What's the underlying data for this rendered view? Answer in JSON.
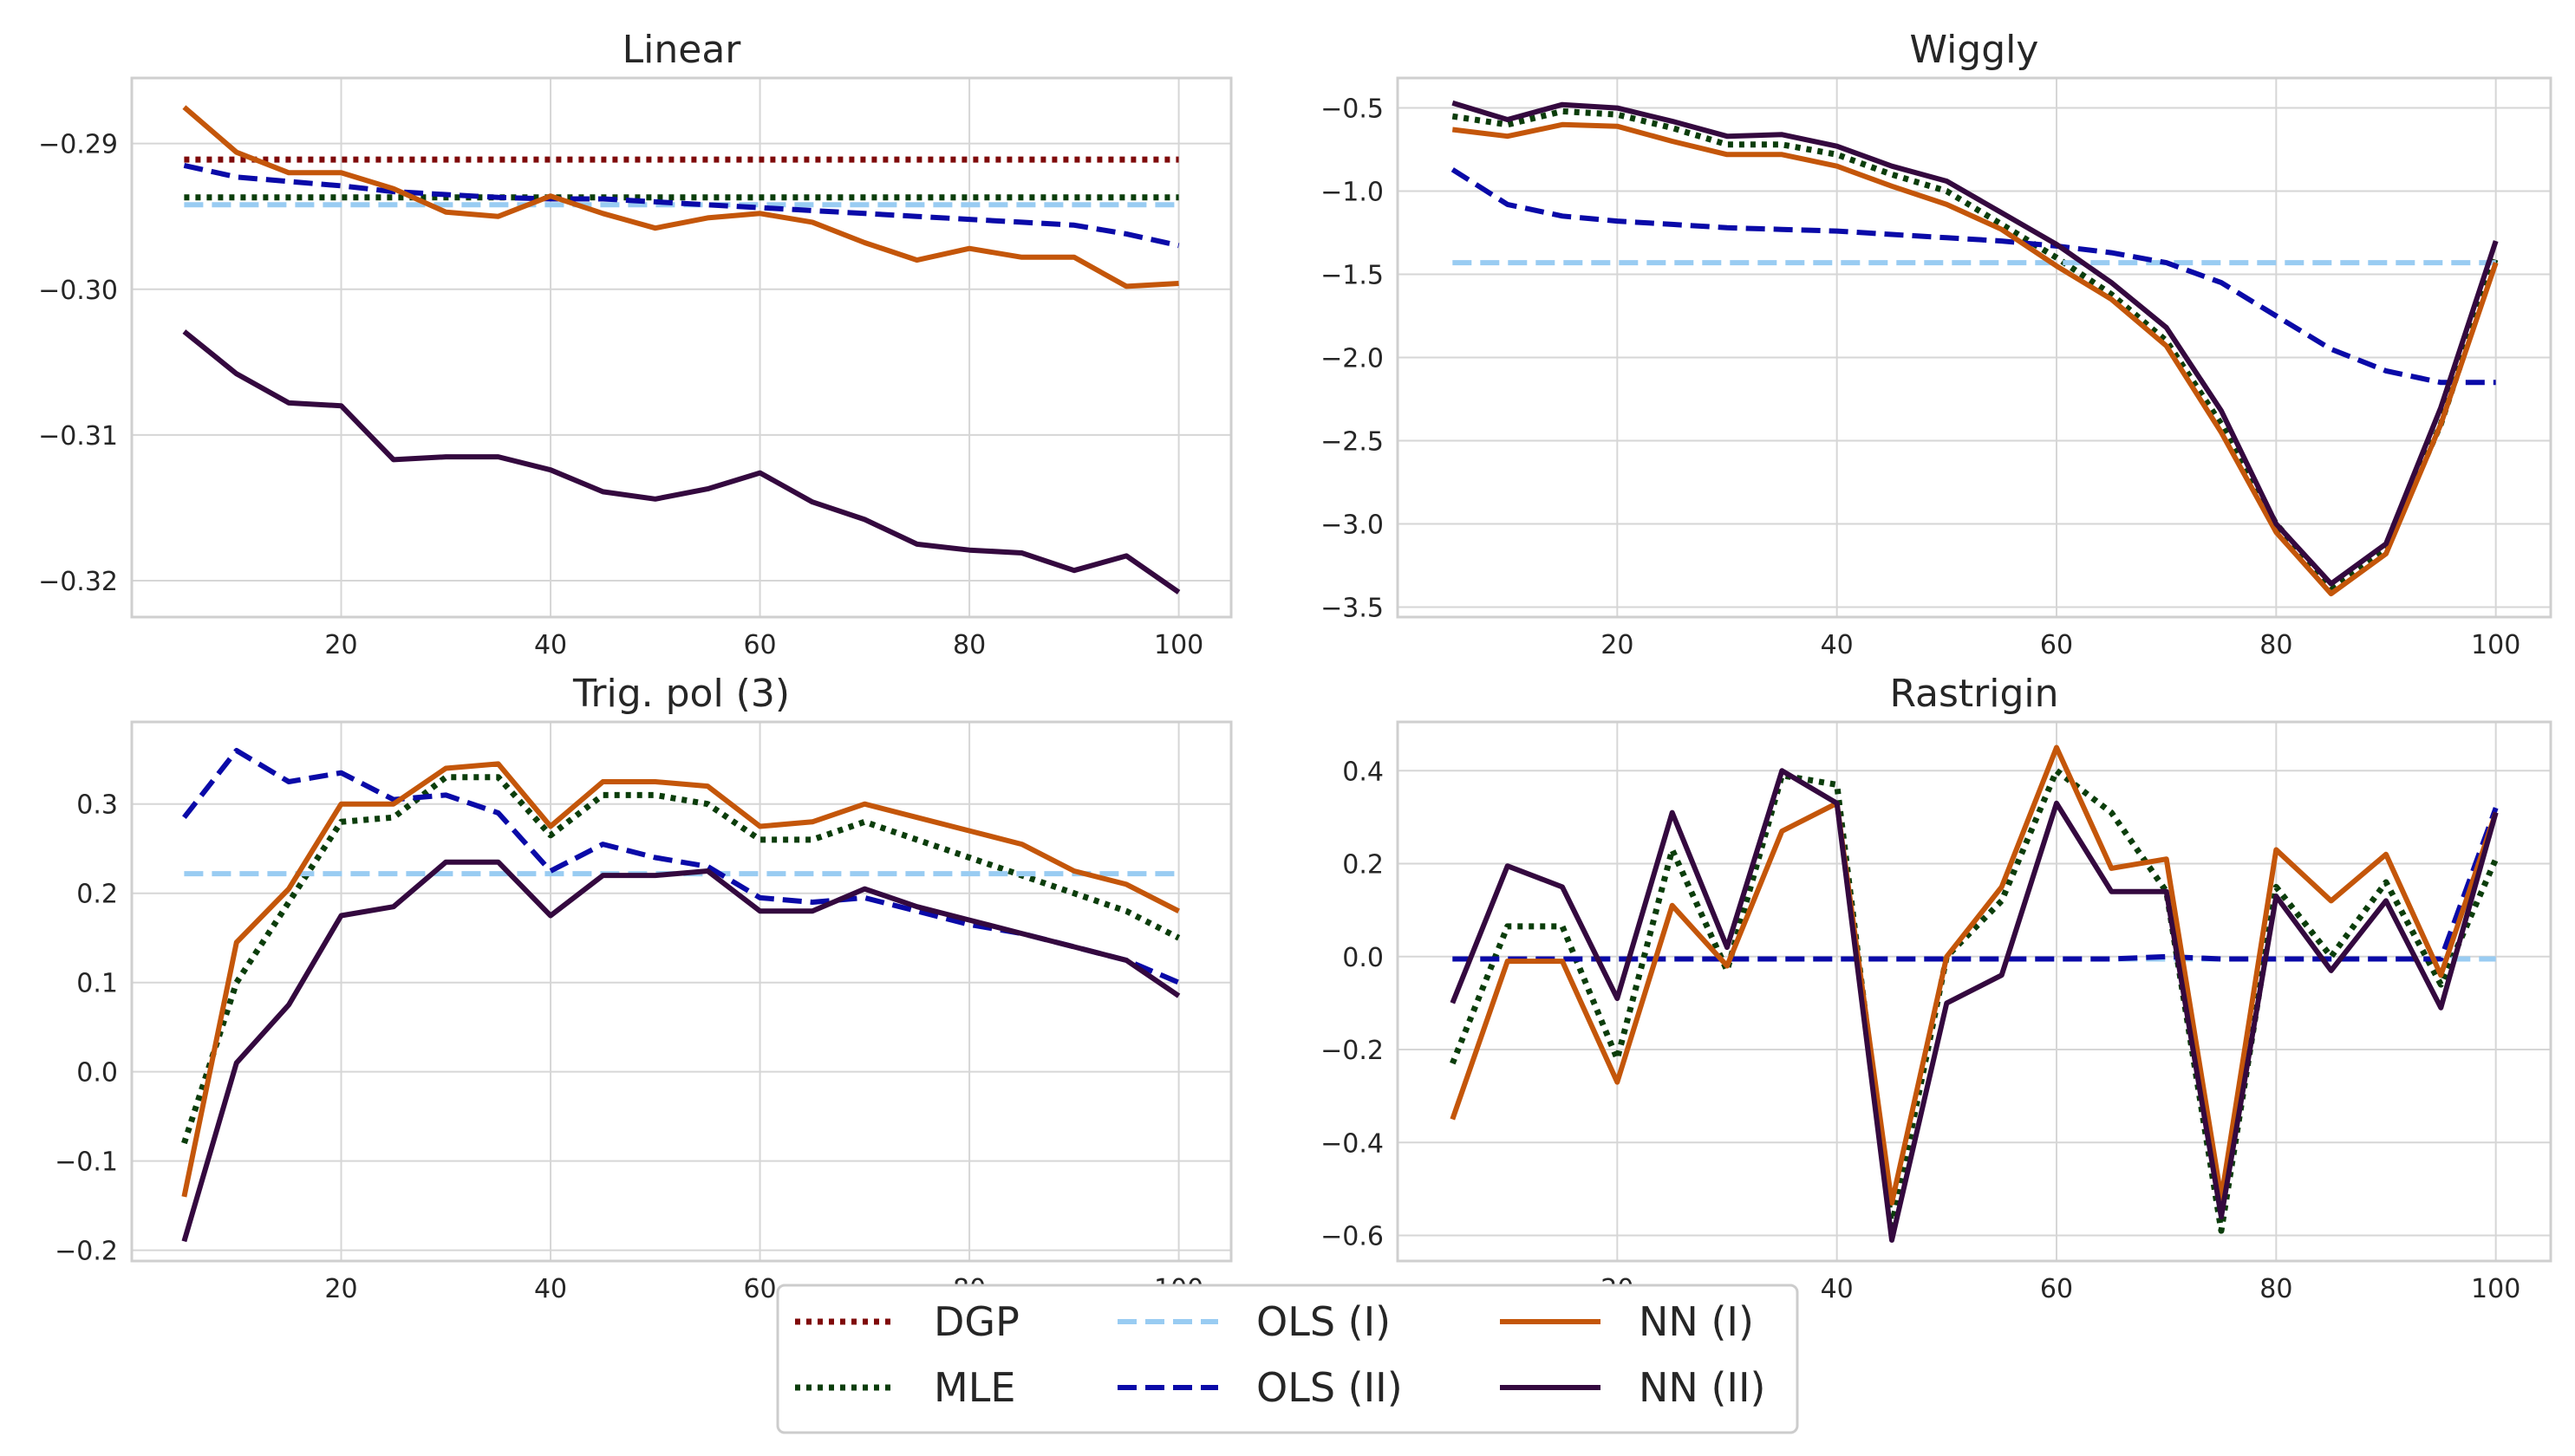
{
  "chart_data": [
    {
      "type": "line",
      "title": "Linear",
      "xlabel": "",
      "ylabel": "",
      "x": [
        5,
        10,
        15,
        20,
        25,
        30,
        35,
        40,
        45,
        50,
        55,
        60,
        65,
        70,
        75,
        80,
        85,
        90,
        95,
        100
      ],
      "xlim": [
        0,
        105
      ],
      "ylim": [
        -0.3225,
        -0.2855
      ],
      "xticks": [
        20,
        40,
        60,
        80,
        100
      ],
      "xtick_labels": [
        "20",
        "40",
        "60",
        "80",
        "100"
      ],
      "yticks": [
        -0.32,
        -0.31,
        -0.3,
        -0.29
      ],
      "ytick_labels": [
        "−0.32",
        "−0.31",
        "−0.30",
        "−0.29"
      ],
      "grid": true,
      "series": [
        {
          "name": "DGP",
          "values": [
            -0.2911,
            -0.2911,
            -0.2911,
            -0.2911,
            -0.2911,
            -0.2911,
            -0.2911,
            -0.2911,
            -0.2911,
            -0.2911,
            -0.2911,
            -0.2911,
            -0.2911,
            -0.2911,
            -0.2911,
            -0.2911,
            -0.2911,
            -0.2911,
            -0.2911,
            -0.2911
          ]
        },
        {
          "name": "MLE",
          "values": [
            -0.2937,
            -0.2937,
            -0.2937,
            -0.2937,
            -0.2937,
            -0.2937,
            -0.2937,
            -0.2937,
            -0.2937,
            -0.2937,
            -0.2937,
            -0.2937,
            -0.2937,
            -0.2937,
            -0.2937,
            -0.2937,
            -0.2937,
            -0.2937,
            -0.2937,
            -0.2937
          ]
        },
        {
          "name": "OLS (I)",
          "values": [
            -0.2942,
            -0.2942,
            -0.2942,
            -0.2942,
            -0.2942,
            -0.2942,
            -0.2942,
            -0.2942,
            -0.2942,
            -0.2942,
            -0.2942,
            -0.2942,
            -0.2942,
            -0.2942,
            -0.2942,
            -0.2942,
            -0.2942,
            -0.2942,
            -0.2942,
            -0.2942
          ]
        },
        {
          "name": "OLS (II)",
          "values": [
            -0.2915,
            -0.2923,
            -0.2926,
            -0.2929,
            -0.2933,
            -0.2935,
            -0.2937,
            -0.2938,
            -0.2938,
            -0.294,
            -0.2942,
            -0.2944,
            -0.2946,
            -0.2948,
            -0.295,
            -0.2952,
            -0.2954,
            -0.2956,
            -0.2962,
            -0.297
          ]
        },
        {
          "name": "NN (I)",
          "values": [
            -0.2875,
            -0.2906,
            -0.292,
            -0.292,
            -0.2931,
            -0.2947,
            -0.295,
            -0.2936,
            -0.2948,
            -0.2958,
            -0.2951,
            -0.2948,
            -0.2954,
            -0.2968,
            -0.298,
            -0.2972,
            -0.2978,
            -0.2978,
            -0.2998,
            -0.2996
          ]
        },
        {
          "name": "NN (II)",
          "values": [
            -0.3029,
            -0.3058,
            -0.3078,
            -0.308,
            -0.3117,
            -0.3115,
            -0.3115,
            -0.3124,
            -0.3139,
            -0.3144,
            -0.3137,
            -0.3126,
            -0.3146,
            -0.3158,
            -0.3175,
            -0.3179,
            -0.3181,
            -0.3193,
            -0.3183,
            -0.3208
          ]
        }
      ]
    },
    {
      "type": "line",
      "title": "Wiggly",
      "xlabel": "",
      "ylabel": "",
      "x": [
        5,
        10,
        15,
        20,
        25,
        30,
        35,
        40,
        45,
        50,
        55,
        60,
        65,
        70,
        75,
        80,
        85,
        90,
        95,
        100
      ],
      "xlim": [
        0,
        105
      ],
      "ylim": [
        -3.56,
        -0.32
      ],
      "xticks": [
        20,
        40,
        60,
        80,
        100
      ],
      "xtick_labels": [
        "20",
        "40",
        "60",
        "80",
        "100"
      ],
      "yticks": [
        -3.5,
        -3.0,
        -2.5,
        -2.0,
        -1.5,
        -1.0,
        -0.5
      ],
      "ytick_labels": [
        "−3.5",
        "−3.0",
        "−2.5",
        "−2.0",
        "−1.5",
        "−1.0",
        "−0.5"
      ],
      "grid": true,
      "series": [
        {
          "name": "MLE",
          "values": [
            -0.55,
            -0.6,
            -0.52,
            -0.54,
            -0.62,
            -0.72,
            -0.72,
            -0.78,
            -0.9,
            -1.0,
            -1.2,
            -1.4,
            -1.62,
            -1.9,
            -2.4,
            -3.0,
            -3.38,
            -3.15,
            -2.4,
            -1.4
          ]
        },
        {
          "name": "OLS (I)",
          "values": [
            -1.43,
            -1.43,
            -1.43,
            -1.43,
            -1.43,
            -1.43,
            -1.43,
            -1.43,
            -1.43,
            -1.43,
            -1.43,
            -1.43,
            -1.43,
            -1.43,
            -1.43,
            -1.43,
            -1.43,
            -1.43,
            -1.43,
            -1.43
          ]
        },
        {
          "name": "OLS (II)",
          "values": [
            -0.87,
            -1.08,
            -1.15,
            -1.18,
            -1.2,
            -1.22,
            -1.23,
            -1.24,
            -1.26,
            -1.28,
            -1.3,
            -1.33,
            -1.37,
            -1.43,
            -1.55,
            -1.75,
            -1.95,
            -2.08,
            -2.15,
            -2.15
          ]
        },
        {
          "name": "NN (I)",
          "values": [
            -0.63,
            -0.67,
            -0.6,
            -0.61,
            -0.7,
            -0.78,
            -0.78,
            -0.85,
            -0.97,
            -1.08,
            -1.23,
            -1.45,
            -1.65,
            -1.93,
            -2.45,
            -3.05,
            -3.42,
            -3.18,
            -2.4,
            -1.43
          ]
        },
        {
          "name": "NN (II)",
          "values": [
            -0.47,
            -0.57,
            -0.48,
            -0.5,
            -0.58,
            -0.67,
            -0.66,
            -0.73,
            -0.85,
            -0.94,
            -1.13,
            -1.32,
            -1.55,
            -1.82,
            -2.32,
            -3.0,
            -3.36,
            -3.12,
            -2.3,
            -1.3
          ]
        }
      ]
    },
    {
      "type": "line",
      "title": "Trig. pol (3)",
      "xlabel": "",
      "ylabel": "",
      "x": [
        5,
        10,
        15,
        20,
        25,
        30,
        35,
        40,
        45,
        50,
        55,
        60,
        65,
        70,
        75,
        80,
        85,
        90,
        95,
        100
      ],
      "xlim": [
        0,
        105
      ],
      "ylim": [
        -0.212,
        0.392
      ],
      "xticks": [
        20,
        40,
        60,
        80,
        100
      ],
      "xtick_labels": [
        "20",
        "40",
        "60",
        "80",
        "100"
      ],
      "yticks": [
        -0.2,
        -0.1,
        0.0,
        0.1,
        0.2,
        0.3
      ],
      "ytick_labels": [
        "−0.2",
        "−0.1",
        "0.0",
        "0.1",
        "0.2",
        "0.3"
      ],
      "grid": true,
      "series": [
        {
          "name": "MLE",
          "values": [
            -0.08,
            0.1,
            0.19,
            0.28,
            0.285,
            0.33,
            0.33,
            0.265,
            0.31,
            0.31,
            0.3,
            0.26,
            0.26,
            0.28,
            0.26,
            0.24,
            0.22,
            0.2,
            0.18,
            0.15
          ]
        },
        {
          "name": "OLS (I)",
          "values": [
            0.222,
            0.222,
            0.222,
            0.222,
            0.222,
            0.222,
            0.222,
            0.222,
            0.222,
            0.222,
            0.222,
            0.222,
            0.222,
            0.222,
            0.222,
            0.222,
            0.222,
            0.222,
            0.222,
            0.222
          ]
        },
        {
          "name": "OLS (II)",
          "values": [
            0.285,
            0.36,
            0.325,
            0.335,
            0.305,
            0.31,
            0.29,
            0.225,
            0.255,
            0.24,
            0.23,
            0.195,
            0.19,
            0.195,
            0.18,
            0.165,
            0.155,
            0.14,
            0.125,
            0.1
          ]
        },
        {
          "name": "NN (I)",
          "values": [
            -0.14,
            0.145,
            0.205,
            0.3,
            0.3,
            0.34,
            0.345,
            0.275,
            0.325,
            0.325,
            0.32,
            0.275,
            0.28,
            0.3,
            0.285,
            0.27,
            0.255,
            0.225,
            0.21,
            0.18
          ]
        },
        {
          "name": "NN (II)",
          "values": [
            -0.19,
            0.01,
            0.075,
            0.175,
            0.185,
            0.235,
            0.235,
            0.175,
            0.22,
            0.22,
            0.225,
            0.18,
            0.18,
            0.205,
            0.185,
            0.17,
            0.155,
            0.14,
            0.125,
            0.085
          ]
        }
      ]
    },
    {
      "type": "line",
      "title": "Rastrigin",
      "xlabel": "",
      "ylabel": "",
      "x": [
        5,
        10,
        15,
        20,
        25,
        30,
        35,
        40,
        45,
        50,
        55,
        60,
        65,
        70,
        75,
        80,
        85,
        90,
        95,
        100
      ],
      "xlim": [
        0,
        105
      ],
      "ylim": [
        -0.655,
        0.505
      ],
      "xticks": [
        20,
        40,
        60,
        80,
        100
      ],
      "xtick_labels": [
        "20",
        "40",
        "60",
        "80",
        "100"
      ],
      "yticks": [
        -0.6,
        -0.4,
        -0.2,
        0.0,
        0.2,
        0.4
      ],
      "ytick_labels": [
        "−0.6",
        "−0.4",
        "−0.2",
        "0.0",
        "0.2",
        "0.4"
      ],
      "grid": true,
      "series": [
        {
          "name": "MLE",
          "values": [
            -0.23,
            0.065,
            0.065,
            -0.22,
            0.23,
            -0.03,
            0.39,
            0.37,
            -0.58,
            0.0,
            0.12,
            0.4,
            0.31,
            0.14,
            -0.59,
            0.15,
            0.0,
            0.16,
            -0.06,
            0.21
          ]
        },
        {
          "name": "OLS (I)",
          "values": [
            -0.005,
            -0.005,
            -0.005,
            -0.005,
            -0.005,
            -0.005,
            -0.005,
            -0.005,
            -0.005,
            -0.005,
            -0.005,
            -0.005,
            -0.005,
            -0.005,
            -0.005,
            -0.005,
            -0.005,
            -0.005,
            -0.005,
            -0.005
          ]
        },
        {
          "name": "OLS (II)",
          "values": [
            -0.005,
            -0.005,
            -0.005,
            -0.005,
            -0.005,
            -0.005,
            -0.005,
            -0.005,
            -0.005,
            -0.005,
            -0.005,
            -0.005,
            -0.005,
            0.0,
            -0.005,
            -0.005,
            -0.005,
            -0.005,
            -0.005,
            0.32
          ]
        },
        {
          "name": "NN (I)",
          "values": [
            -0.35,
            -0.01,
            -0.01,
            -0.27,
            0.11,
            -0.02,
            0.27,
            0.33,
            -0.53,
            0.0,
            0.15,
            0.45,
            0.19,
            0.21,
            -0.52,
            0.23,
            0.12,
            0.22,
            -0.04,
            0.31
          ]
        },
        {
          "name": "NN (II)",
          "values": [
            -0.1,
            0.195,
            0.15,
            -0.09,
            0.31,
            0.02,
            0.4,
            0.33,
            -0.61,
            -0.1,
            -0.04,
            0.33,
            0.14,
            0.14,
            -0.56,
            0.13,
            -0.03,
            0.12,
            -0.11,
            0.31
          ]
        }
      ]
    }
  ],
  "legend": {
    "placement": "bottom-center",
    "entries": [
      {
        "name": "DGP",
        "color": "#7f0a0a",
        "style": "dotted"
      },
      {
        "name": "MLE",
        "color": "#0b3d0b",
        "style": "dotted"
      },
      {
        "name": "OLS (I)",
        "color": "#99ccf2",
        "style": "dashed"
      },
      {
        "name": "OLS (II)",
        "color": "#0a0aa8",
        "style": "dashed"
      },
      {
        "name": "NN (I)",
        "color": "#c4560a",
        "style": "solid"
      },
      {
        "name": "NN (II)",
        "color": "#34093f",
        "style": "solid"
      }
    ]
  },
  "colors": {
    "DGP": "#7f0a0a",
    "MLE": "#0b3d0b",
    "OLS (I)": "#99ccf2",
    "OLS (II)": "#0a0aa8",
    "NN (I)": "#c4560a",
    "NN (II)": "#34093f",
    "grid": "#d6d6d6",
    "axes_edge": "#cfcfcf",
    "text": "#262626"
  }
}
